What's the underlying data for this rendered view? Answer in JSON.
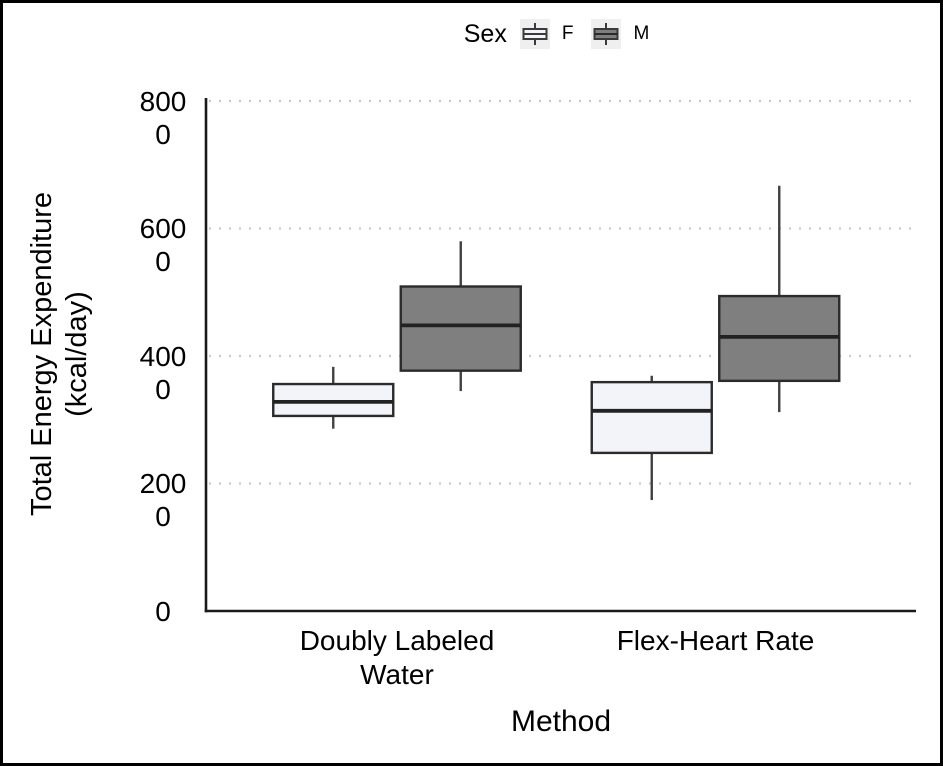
{
  "figure": {
    "background": "#ffffff",
    "border_color": "#000000"
  },
  "chart_data": {
    "type": "boxplot",
    "title": "",
    "xlabel": "Method",
    "ylabel": "Total Energy Expenditure (kcal/day)",
    "ylabel_lines": [
      "Total Energy Expenditure",
      "(kcal/day)"
    ],
    "categories": [
      "Doubly Labeled Water",
      "Flex-Heart Rate"
    ],
    "category_label_lines": [
      [
        "Doubly Labeled",
        "Water"
      ],
      [
        "Flex-Heart Rate"
      ]
    ],
    "y_ticks": [
      0,
      2000,
      4000,
      6000,
      8000
    ],
    "ylim": [
      0,
      8000
    ],
    "grid": "horizontal-dotted",
    "legend": {
      "title": "Sex",
      "position": "top-center",
      "entries": [
        {
          "label": "F",
          "fill": "#f3f4fa"
        },
        {
          "label": "M",
          "fill": "#7f7f7f"
        }
      ]
    },
    "series": [
      {
        "name": "F",
        "fill": "#f3f4fa",
        "boxes": [
          {
            "category": "Doubly Labeled Water",
            "whisker_low": 2860,
            "q1": 3060,
            "median": 3280,
            "q3": 3560,
            "whisker_high": 3830
          },
          {
            "category": "Flex-Heart Rate",
            "whisker_low": 1740,
            "q1": 2480,
            "median": 3140,
            "q3": 3590,
            "whisker_high": 3690
          }
        ]
      },
      {
        "name": "M",
        "fill": "#7f7f7f",
        "boxes": [
          {
            "category": "Doubly Labeled Water",
            "whisker_low": 3450,
            "q1": 3770,
            "median": 4480,
            "q3": 5090,
            "whisker_high": 5800
          },
          {
            "category": "Flex-Heart Rate",
            "whisker_low": 3120,
            "q1": 3610,
            "median": 4300,
            "q3": 4940,
            "whisker_high": 6670
          }
        ]
      }
    ],
    "colors": {
      "box_stroke": "#2b2b2b",
      "whisker": "#404040",
      "median": "#222222",
      "grid": "#c9c9c9",
      "axis": "#1a1a1a"
    }
  }
}
